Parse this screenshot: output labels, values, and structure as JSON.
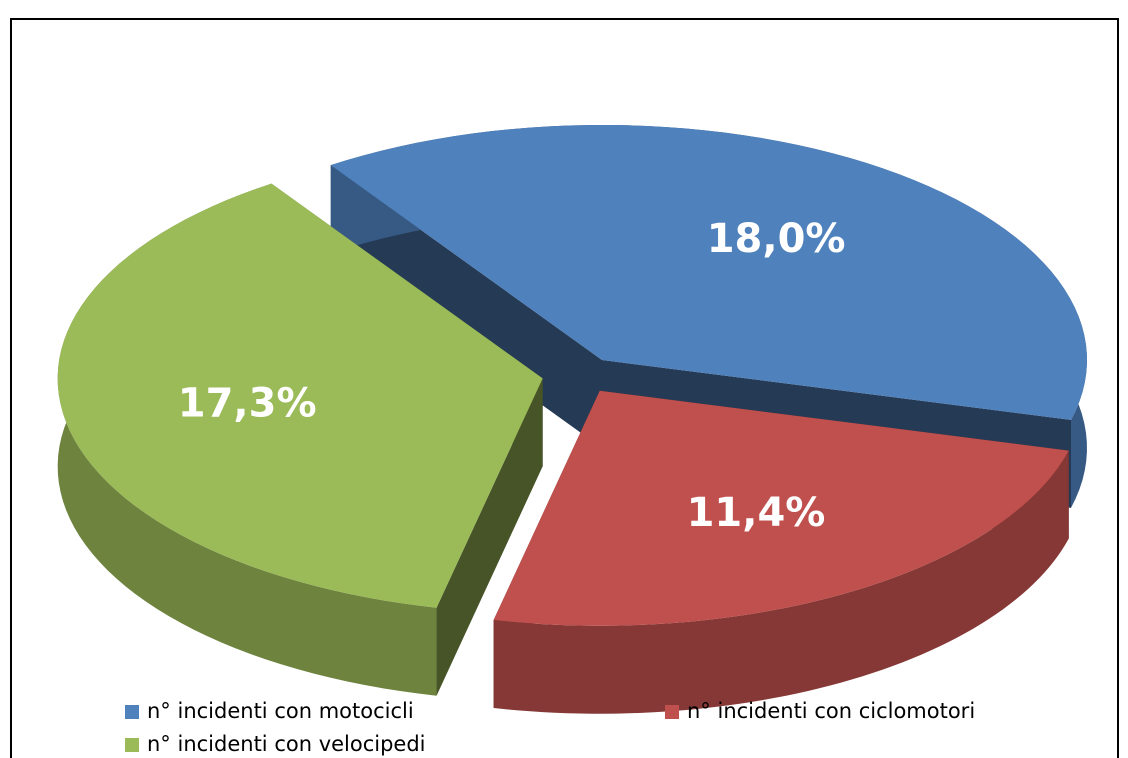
{
  "chart_data": {
    "type": "pie",
    "categories": [
      "n° incidenti con motocicli",
      "n° incidenti con ciclomotori",
      "n° incidenti con velocipedi"
    ],
    "values": [
      18.0,
      11.4,
      17.3
    ],
    "value_labels": [
      "18,0%",
      "11,4%",
      "17,3%"
    ],
    "colors": [
      "#4f81bd",
      "#c0504d",
      "#9bbb59"
    ],
    "legend": "bottom"
  }
}
